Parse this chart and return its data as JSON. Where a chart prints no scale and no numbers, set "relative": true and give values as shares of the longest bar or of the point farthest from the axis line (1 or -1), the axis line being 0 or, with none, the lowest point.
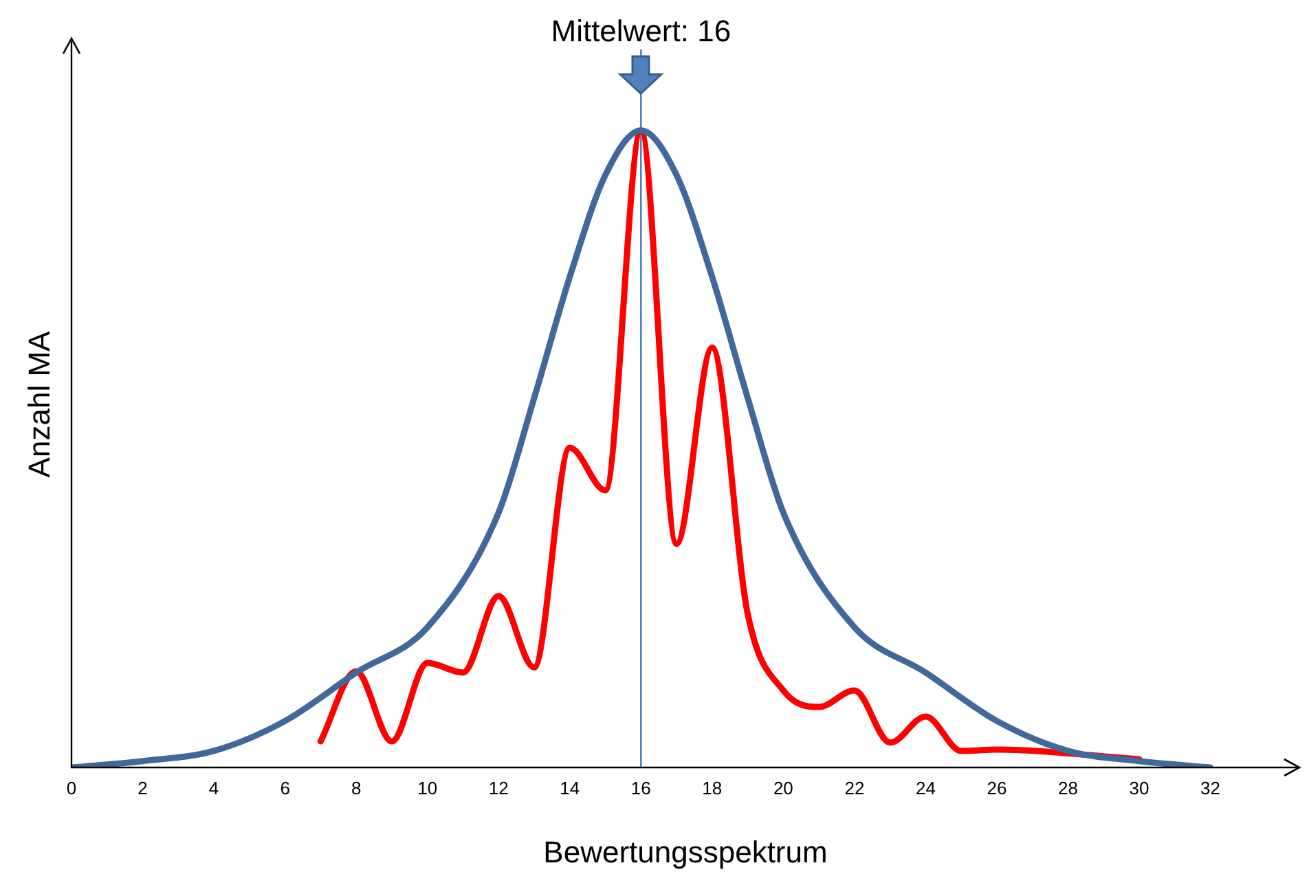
{
  "chart_data": {
    "type": "line",
    "relative": true,
    "xlabel": "Bewertungsspektrum",
    "ylabel": "Anzahl MA",
    "xlim": [
      0,
      34.5
    ],
    "xticks": [
      0,
      2,
      4,
      6,
      8,
      10,
      12,
      14,
      16,
      18,
      20,
      22,
      24,
      26,
      28,
      30,
      32
    ],
    "grid": false,
    "legend": false,
    "marker": "none",
    "line_style": "solid",
    "series": [
      {
        "color": "#41689a",
        "x": [
          0,
          2,
          4,
          6,
          8,
          10,
          12,
          13,
          14,
          15,
          16,
          17,
          18,
          19,
          20,
          22,
          24,
          26,
          28,
          30,
          32
        ],
        "values": [
          0,
          0.01,
          0.026,
          0.073,
          0.149,
          0.22,
          0.4,
          0.58,
          0.77,
          0.93,
          1,
          0.93,
          0.77,
          0.58,
          0.4,
          0.22,
          0.149,
          0.073,
          0.026,
          0.01,
          0
        ]
      },
      {
        "color": "#ff0000",
        "x": [
          7,
          8,
          9,
          10,
          11,
          12,
          13,
          14,
          15,
          16,
          17,
          18,
          19,
          20,
          21,
          22,
          23,
          24,
          25,
          26,
          30
        ],
        "values": [
          0.041,
          0.151,
          0.041,
          0.164,
          0.149,
          0.269,
          0.157,
          0.502,
          0.435,
          1,
          0.351,
          0.659,
          0.241,
          0.121,
          0.095,
          0.121,
          0.039,
          0.08,
          0.026,
          0.028,
          0.013
        ]
      }
    ],
    "ref_lines": [
      {
        "axis": "x",
        "value": 16,
        "label": "Mittelwert: 16",
        "color": "#4f81bd"
      }
    ]
  }
}
